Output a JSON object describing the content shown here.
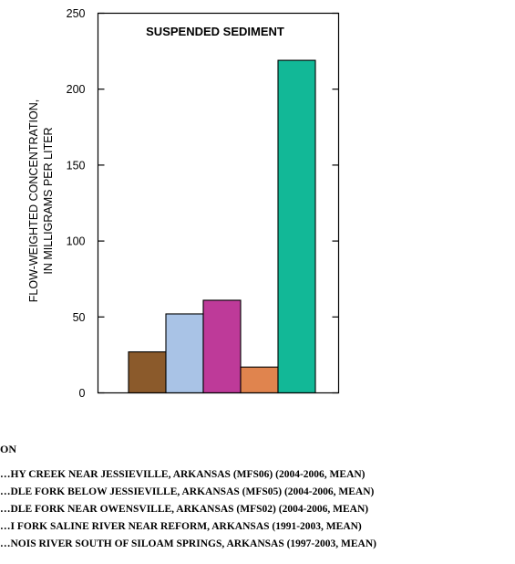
{
  "chart_data": {
    "type": "bar",
    "title": "SUSPENDED SEDIMENT",
    "ylabel_line1": "FLOW-WEIGHTED CONCENTRATION,",
    "ylabel_line2": "IN MILLIGRAMS PER LITER",
    "ylim": [
      0,
      250
    ],
    "yticks": [
      0,
      50,
      100,
      150,
      200,
      250
    ],
    "grid": false,
    "series": [
      {
        "name": "…HY CREEK NEAR JESSIEVILLE, ARKANSAS (MFS06) (2004-2006, MEAN)",
        "value": 27,
        "color": "#8B5A2B"
      },
      {
        "name": "…DLE FORK BELOW JESSIEVILLE, ARKANSAS (MFS05) (2004-2006, MEAN)",
        "value": 52,
        "color": "#A9C3E6"
      },
      {
        "name": "…DLE FORK NEAR OWENSVILLE, ARKANSAS (MFS02) (2004-2006, MEAN)",
        "value": 61,
        "color": "#BE3A99"
      },
      {
        "name": "…I FORK SALINE RIVER NEAR REFORM, ARKANSAS (1991-2003, MEAN)",
        "value": 17,
        "color": "#E0844E"
      },
      {
        "name": "…NOIS RIVER SOUTH OF SILOAM SPRINGS, ARKANSAS (1997-2003, MEAN)",
        "value": 219,
        "color": "#12B897"
      }
    ]
  },
  "legend": {
    "title": "ON"
  }
}
